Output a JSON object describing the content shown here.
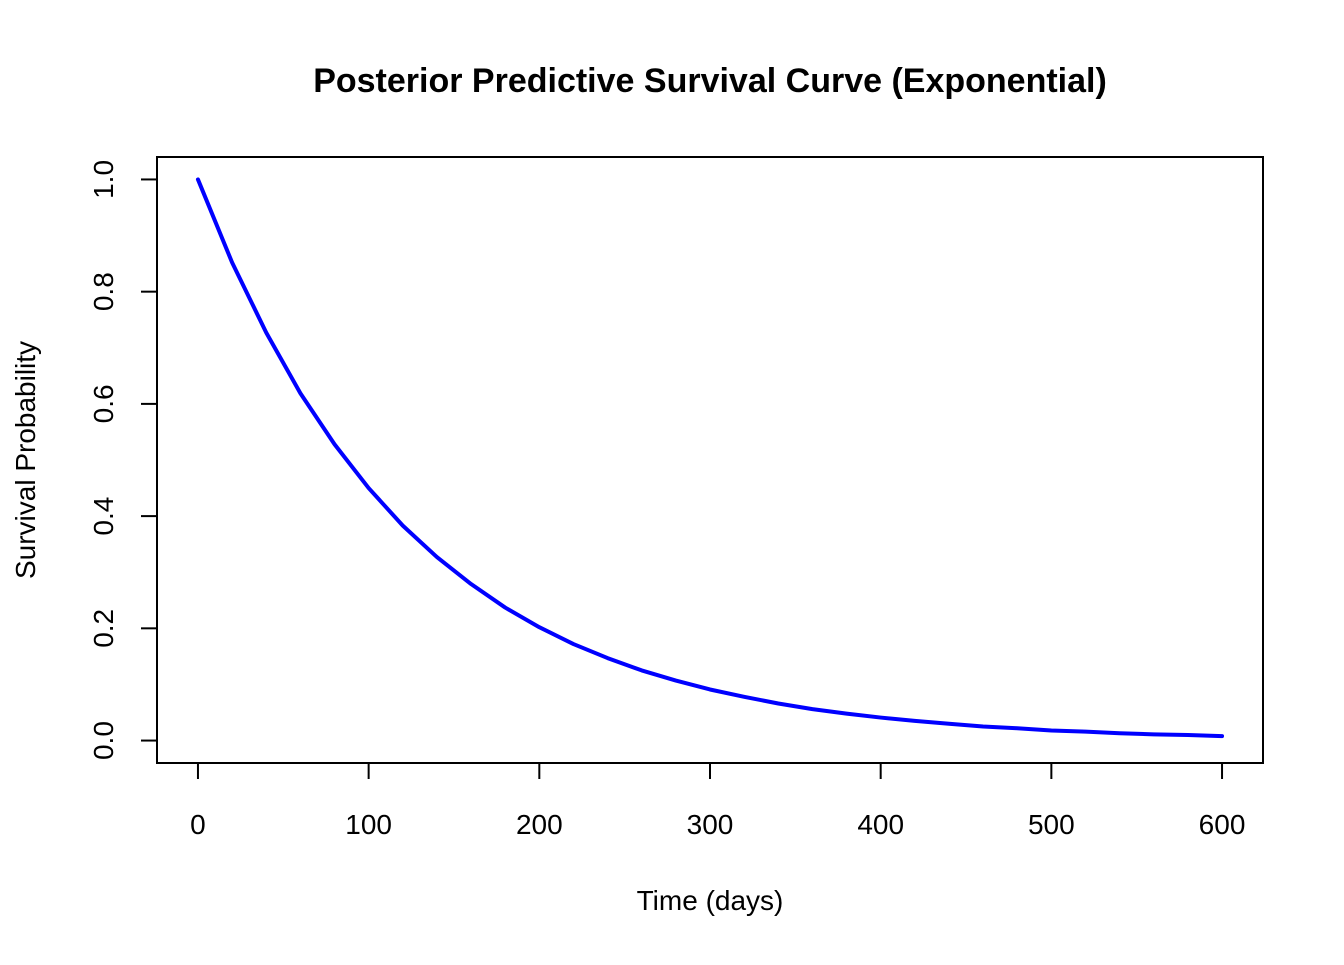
{
  "chart_data": {
    "type": "line",
    "title": "Posterior Predictive Survival Curve (Exponential)",
    "xlabel": "Time (days)",
    "ylabel": "Survival Probability",
    "xlim": [
      -24,
      624
    ],
    "ylim": [
      -0.04,
      1.04
    ],
    "x_ticks": [
      0,
      100,
      200,
      300,
      400,
      500,
      600
    ],
    "x_tick_labels": [
      "0",
      "100",
      "200",
      "300",
      "400",
      "500",
      "600"
    ],
    "y_ticks": [
      0.0,
      0.2,
      0.4,
      0.6,
      0.8,
      1.0
    ],
    "y_tick_labels": [
      "0.0",
      "0.2",
      "0.4",
      "0.6",
      "0.8",
      "1.0"
    ],
    "grid": false,
    "legend": "none",
    "series": [
      {
        "color": "#0000ff",
        "x": [
          0,
          20,
          40,
          60,
          80,
          100,
          120,
          140,
          160,
          180,
          200,
          220,
          240,
          260,
          280,
          300,
          320,
          340,
          360,
          380,
          400,
          420,
          440,
          460,
          480,
          500,
          520,
          540,
          560,
          580,
          600
        ],
        "y": [
          1.0,
          0.852,
          0.727,
          0.619,
          0.528,
          0.45,
          0.383,
          0.327,
          0.279,
          0.237,
          0.202,
          0.172,
          0.147,
          0.125,
          0.107,
          0.091,
          0.078,
          0.066,
          0.056,
          0.048,
          0.041,
          0.035,
          0.03,
          0.025,
          0.022,
          0.018,
          0.016,
          0.013,
          0.011,
          0.01,
          0.008
        ]
      }
    ]
  }
}
